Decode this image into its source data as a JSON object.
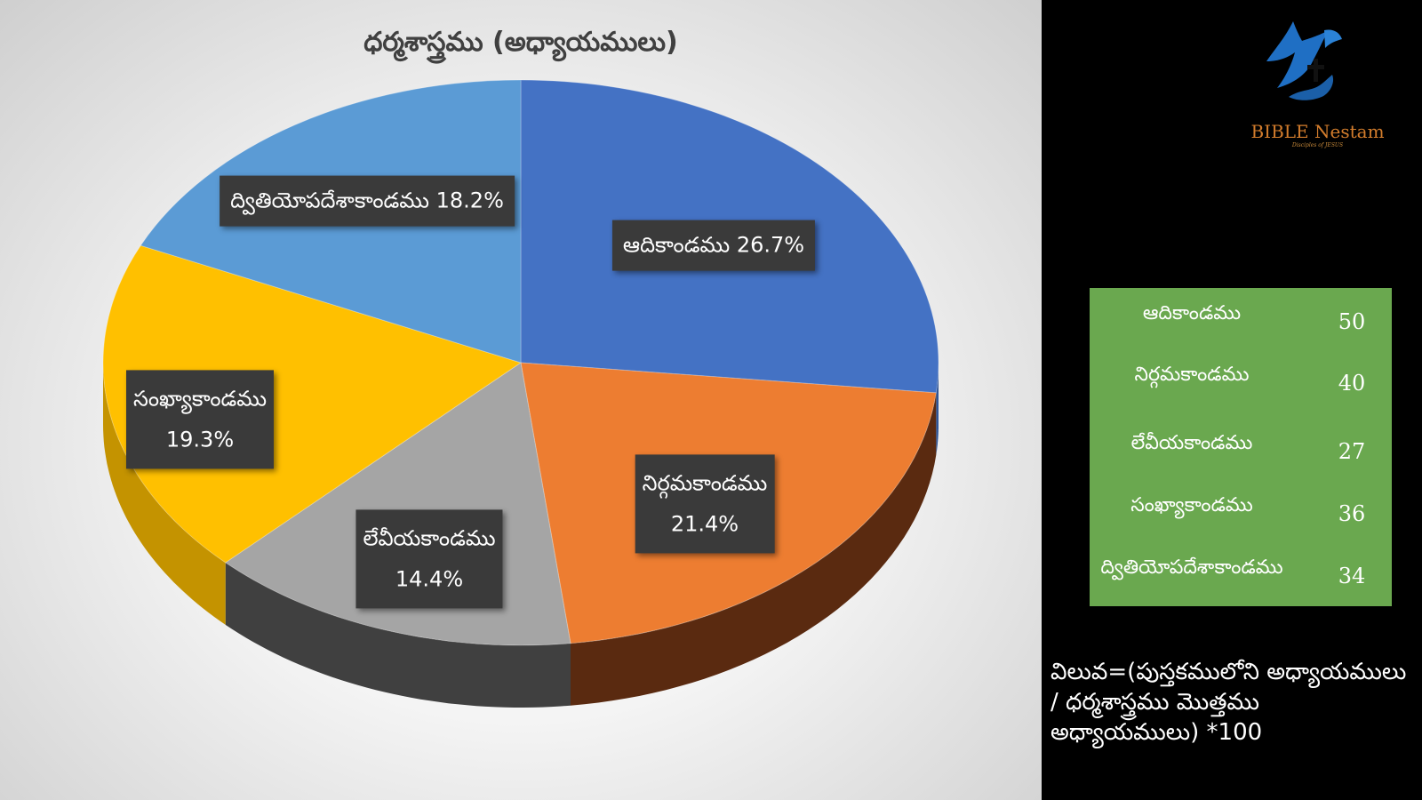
{
  "chart_data": {
    "type": "pie",
    "title": "ధర్మశాస్త్రము (అధ్యాయములు)",
    "categories": [
      "ఆదికాండము",
      "నిర్గమకాండము",
      "లేవీయకాండము",
      "సంఖ్యాకాండము",
      "ద్వితియోపదేశాకాండము"
    ],
    "values": [
      26.7,
      21.4,
      14.4,
      19.3,
      18.2
    ],
    "data_labels": [
      "26.7%",
      "21.4%",
      "14.4%",
      "19.3%",
      "18.2%"
    ],
    "colors": [
      "#4472c4",
      "#ed7d31",
      "#a5a5a5",
      "#ffc000",
      "#5b9bd5"
    ],
    "side_colors": [
      "#2f5597",
      "#5a2a10",
      "#404040",
      "#c49300",
      "#3d6fa3"
    ]
  },
  "logo": {
    "name": "BIBLE Nestam",
    "tagline": "Disciples of JESUS",
    "icon": "dove-cross-hand-icon"
  },
  "counts_table": [
    {
      "name": "ఆదికాండము",
      "count": "50"
    },
    {
      "name": "నిర్గమకాండము",
      "count": "40"
    },
    {
      "name": "లేవీయకాండము",
      "count": "27"
    },
    {
      "name": "సంఖ్యాకాండము",
      "count": "36"
    },
    {
      "name": "ద్వితియోపదేశాకాండము",
      "count": "34"
    }
  ],
  "formula": "విలువ=(పుస్తకములోని అధ్యాయములు / ధర్మశాస్త్రము మొత్తము అధ్యాయములు) *100"
}
